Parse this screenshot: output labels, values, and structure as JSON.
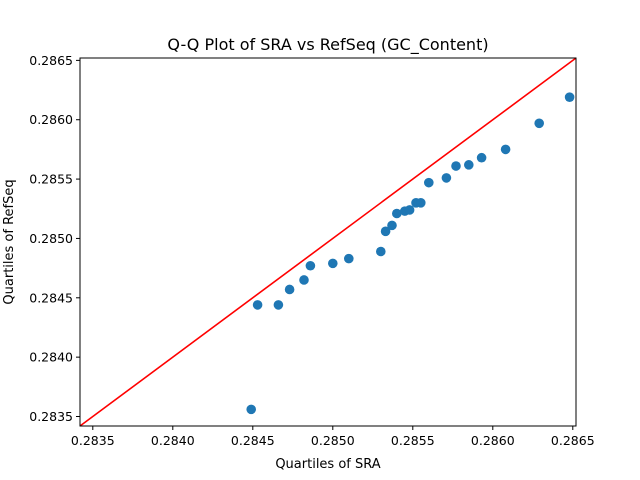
{
  "chart_data": {
    "type": "scatter",
    "title": "Q-Q Plot of SRA vs RefSeq (GC_Content)",
    "xlabel": "Quartiles of SRA",
    "ylabel": "Quartiles of RefSeq",
    "xlim": [
      0.28342,
      0.28652
    ],
    "ylim": [
      0.28342,
      0.28652
    ],
    "xticks": [
      0.2835,
      0.284,
      0.2845,
      0.285,
      0.2855,
      0.286,
      0.2865
    ],
    "yticks": [
      0.2835,
      0.284,
      0.2845,
      0.285,
      0.2855,
      0.286,
      0.2865
    ],
    "xtick_labels": [
      "0.2835",
      "0.2840",
      "0.2845",
      "0.2850",
      "0.2855",
      "0.2860",
      "0.2865"
    ],
    "ytick_labels": [
      "0.2835",
      "0.2840",
      "0.2845",
      "0.2850",
      "0.2855",
      "0.2860",
      "0.2865"
    ],
    "grid": false,
    "marker_color": "#1f77b4",
    "line_color": "#ff0000",
    "reference_line": "y = x",
    "points": [
      {
        "x": 0.28449,
        "y": 0.28356
      },
      {
        "x": 0.28453,
        "y": 0.28444
      },
      {
        "x": 0.28466,
        "y": 0.28444
      },
      {
        "x": 0.28473,
        "y": 0.28457
      },
      {
        "x": 0.28482,
        "y": 0.28465
      },
      {
        "x": 0.28486,
        "y": 0.28477
      },
      {
        "x": 0.285,
        "y": 0.28479
      },
      {
        "x": 0.2851,
        "y": 0.28483
      },
      {
        "x": 0.2853,
        "y": 0.28489
      },
      {
        "x": 0.28533,
        "y": 0.28506
      },
      {
        "x": 0.28537,
        "y": 0.28511
      },
      {
        "x": 0.2854,
        "y": 0.28521
      },
      {
        "x": 0.28545,
        "y": 0.28523
      },
      {
        "x": 0.28548,
        "y": 0.28524
      },
      {
        "x": 0.28552,
        "y": 0.2853
      },
      {
        "x": 0.28555,
        "y": 0.2853
      },
      {
        "x": 0.2856,
        "y": 0.28547
      },
      {
        "x": 0.28571,
        "y": 0.28551
      },
      {
        "x": 0.28577,
        "y": 0.28561
      },
      {
        "x": 0.28585,
        "y": 0.28562
      },
      {
        "x": 0.28593,
        "y": 0.28568
      },
      {
        "x": 0.28608,
        "y": 0.28575
      },
      {
        "x": 0.28629,
        "y": 0.28597
      },
      {
        "x": 0.28648,
        "y": 0.28619
      }
    ]
  }
}
